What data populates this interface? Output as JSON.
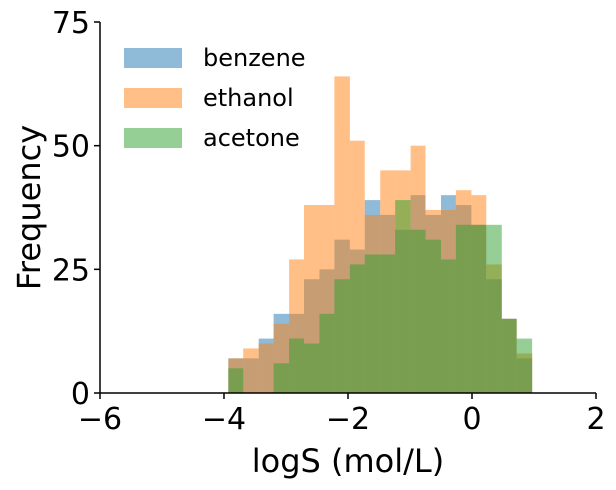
{
  "chart_data": {
    "type": "histogram",
    "xlabel": "logS (mol/L)",
    "ylabel": "Frequency",
    "xlim": [
      -6,
      2
    ],
    "ylim": [
      0,
      75
    ],
    "xticks": [
      -6,
      -4,
      -2,
      0,
      2
    ],
    "yticks": [
      0,
      25,
      50,
      75
    ],
    "xtick_labels": [
      "−6",
      "−4",
      "−2",
      "0",
      "2"
    ],
    "ytick_labels": [
      "0",
      "25",
      "50",
      "75"
    ],
    "legend_position": "top-left",
    "grid": false,
    "series": [
      {
        "name": "benzene",
        "color": "#1f77b4",
        "opacity": 0.5,
        "bins": [
          {
            "x0": -3.93,
            "x1": -3.69,
            "count": 7
          },
          {
            "x0": -3.69,
            "x1": -3.44,
            "count": 7
          },
          {
            "x0": -3.44,
            "x1": -3.2,
            "count": 11
          },
          {
            "x0": -3.2,
            "x1": -2.95,
            "count": 16
          },
          {
            "x0": -2.95,
            "x1": -2.71,
            "count": 16
          },
          {
            "x0": -2.71,
            "x1": -2.46,
            "count": 23
          },
          {
            "x0": -2.46,
            "x1": -2.22,
            "count": 25
          },
          {
            "x0": -2.22,
            "x1": -1.97,
            "count": 31
          },
          {
            "x0": -1.97,
            "x1": -1.73,
            "count": 29
          },
          {
            "x0": -1.73,
            "x1": -1.48,
            "count": 39
          },
          {
            "x0": -1.48,
            "x1": -1.24,
            "count": 36
          },
          {
            "x0": -1.24,
            "x1": -0.99,
            "count": 33
          },
          {
            "x0": -0.99,
            "x1": -0.75,
            "count": 40
          },
          {
            "x0": -0.75,
            "x1": -0.5,
            "count": 36
          },
          {
            "x0": -0.5,
            "x1": -0.26,
            "count": 40
          },
          {
            "x0": -0.26,
            "x1": -0.01,
            "count": 38
          },
          {
            "x0": -0.01,
            "x1": 0.23,
            "count": 34
          },
          {
            "x0": 0.23,
            "x1": 0.48,
            "count": 23
          },
          {
            "x0": 0.48,
            "x1": 0.72,
            "count": 15
          },
          {
            "x0": 0.72,
            "x1": 0.97,
            "count": 7
          }
        ]
      },
      {
        "name": "ethanol",
        "color": "#ff7f0e",
        "opacity": 0.5,
        "bins": [
          {
            "x0": -3.93,
            "x1": -3.69,
            "count": 7
          },
          {
            "x0": -3.69,
            "x1": -3.44,
            "count": 9
          },
          {
            "x0": -3.44,
            "x1": -3.2,
            "count": 10
          },
          {
            "x0": -3.2,
            "x1": -2.95,
            "count": 14
          },
          {
            "x0": -2.95,
            "x1": -2.71,
            "count": 27
          },
          {
            "x0": -2.71,
            "x1": -2.46,
            "count": 38
          },
          {
            "x0": -2.46,
            "x1": -2.22,
            "count": 38
          },
          {
            "x0": -2.22,
            "x1": -1.97,
            "count": 64
          },
          {
            "x0": -1.97,
            "x1": -1.73,
            "count": 51
          },
          {
            "x0": -1.73,
            "x1": -1.48,
            "count": 36
          },
          {
            "x0": -1.48,
            "x1": -1.24,
            "count": 45
          },
          {
            "x0": -1.24,
            "x1": -0.99,
            "count": 45
          },
          {
            "x0": -0.99,
            "x1": -0.75,
            "count": 50
          },
          {
            "x0": -0.75,
            "x1": -0.5,
            "count": 37
          },
          {
            "x0": -0.5,
            "x1": -0.26,
            "count": 37
          },
          {
            "x0": -0.26,
            "x1": -0.01,
            "count": 41
          },
          {
            "x0": -0.01,
            "x1": 0.23,
            "count": 40
          },
          {
            "x0": 0.23,
            "x1": 0.48,
            "count": 26
          },
          {
            "x0": 0.48,
            "x1": 0.72,
            "count": 15
          },
          {
            "x0": 0.72,
            "x1": 0.97,
            "count": 8
          }
        ]
      },
      {
        "name": "acetone",
        "color": "#2ca02c",
        "opacity": 0.5,
        "bins": [
          {
            "x0": -3.93,
            "x1": -3.69,
            "count": 5
          },
          {
            "x0": -3.69,
            "x1": -3.44,
            "count": 0
          },
          {
            "x0": -3.44,
            "x1": -3.2,
            "count": 0
          },
          {
            "x0": -3.2,
            "x1": -2.95,
            "count": 6
          },
          {
            "x0": -2.95,
            "x1": -2.71,
            "count": 11
          },
          {
            "x0": -2.71,
            "x1": -2.46,
            "count": 10
          },
          {
            "x0": -2.46,
            "x1": -2.22,
            "count": 16
          },
          {
            "x0": -2.22,
            "x1": -1.97,
            "count": 23
          },
          {
            "x0": -1.97,
            "x1": -1.73,
            "count": 26
          },
          {
            "x0": -1.73,
            "x1": -1.48,
            "count": 28
          },
          {
            "x0": -1.48,
            "x1": -1.24,
            "count": 28
          },
          {
            "x0": -1.24,
            "x1": -0.99,
            "count": 39
          },
          {
            "x0": -0.99,
            "x1": -0.75,
            "count": 33
          },
          {
            "x0": -0.75,
            "x1": -0.5,
            "count": 31
          },
          {
            "x0": -0.5,
            "x1": -0.26,
            "count": 27
          },
          {
            "x0": -0.26,
            "x1": -0.01,
            "count": 34
          },
          {
            "x0": -0.01,
            "x1": 0.23,
            "count": 34
          },
          {
            "x0": 0.23,
            "x1": 0.48,
            "count": 34
          },
          {
            "x0": 0.48,
            "x1": 0.72,
            "count": 15
          },
          {
            "x0": 0.72,
            "x1": 0.97,
            "count": 11
          }
        ]
      }
    ]
  }
}
